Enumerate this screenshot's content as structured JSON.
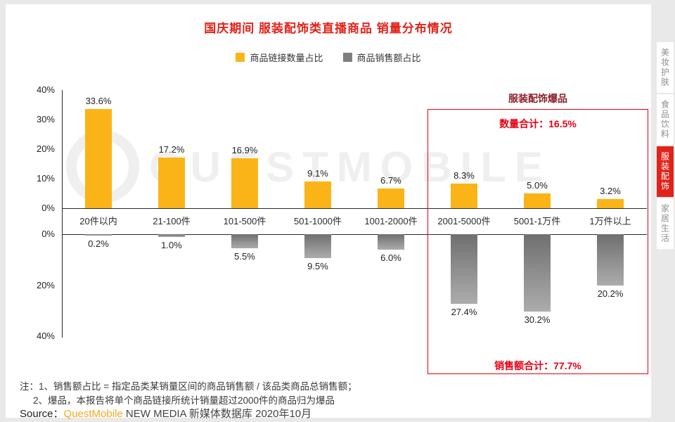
{
  "title": "国庆期间 服装配饰类直播商品 销量分布情况",
  "legend": [
    {
      "label": "商品链接数量占比",
      "color": "#FBB417"
    },
    {
      "label": "商品销售额占比",
      "color": "#7F7F7F"
    }
  ],
  "chart_data": {
    "type": "bar",
    "categories": [
      "20件以内",
      "21-100件",
      "101-500件",
      "501-1000件",
      "1001-2000件",
      "2001-5000件",
      "5001-1万件",
      "1万件以上"
    ],
    "series": [
      {
        "name": "商品链接数量占比",
        "direction": "up",
        "color": "#FBB417",
        "values": [
          33.6,
          17.2,
          16.9,
          9.1,
          6.7,
          8.3,
          5.0,
          3.2
        ]
      },
      {
        "name": "商品销售额占比",
        "direction": "down",
        "color": "#7F7F7F",
        "values": [
          0.2,
          1.0,
          5.5,
          9.5,
          6.0,
          27.4,
          30.2,
          20.2
        ]
      }
    ],
    "y_axis_up": [
      "40%",
      "30%",
      "20%",
      "10%",
      "0%"
    ],
    "y_axis_down": [
      "0%",
      "20%",
      "40%"
    ],
    "ylim_up": [
      0,
      40
    ],
    "ylim_down": [
      0,
      40
    ],
    "grid": false,
    "legend_position": "top"
  },
  "highlight": {
    "title": "服装配饰爆品",
    "count_total": "数量合计：16.5%",
    "sales_total": "销售额合计：77.7%",
    "start_category": "2001-5000件"
  },
  "notes": [
    "注：1、销售额占比 = 指定品类某销量区间的商品销售额 / 该品类商品总销售额；",
    "2、爆品，本报告将单个商品链接所统计销量超过2000件的商品归为爆品"
  ],
  "source": {
    "prefix": "Source：",
    "brand": "QuestMobile",
    "suffix": "NEW MEDIA 新媒体数据库 2020年10月"
  },
  "side_tabs": [
    {
      "label": "美妆护肤",
      "active": false
    },
    {
      "label": "食品饮料",
      "active": false
    },
    {
      "label": "服装配饰",
      "active": true
    },
    {
      "label": "家居生活",
      "active": false
    }
  ],
  "watermark": "QUESTMOBILE",
  "colors": {
    "title_red": "#E2231A",
    "box_red": "#E60012",
    "bar_orange": "#FBB417",
    "bar_gray": "#7F7F7F"
  }
}
